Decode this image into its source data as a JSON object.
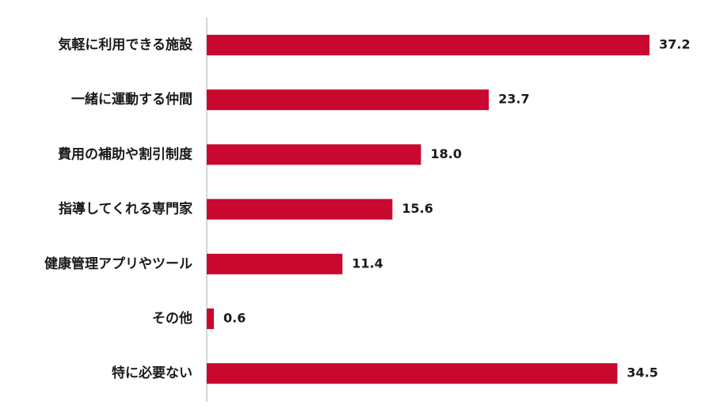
{
  "chart_data": {
    "type": "bar",
    "orientation": "horizontal",
    "categories": [
      "気軽に利用できる施設",
      "一緒に運動する仲間",
      "費用の補助や割引制度",
      "指導してくれる専門家",
      "健康管理アプリやツール",
      "その他",
      "特に必要ない"
    ],
    "values": [
      37.2,
      23.7,
      18.0,
      15.6,
      11.4,
      0.6,
      34.5
    ],
    "value_labels": [
      "37.2",
      "23.7",
      "18.0",
      "15.6",
      "11.4",
      "0.6",
      "34.5"
    ],
    "color": "#c8082e"
  }
}
